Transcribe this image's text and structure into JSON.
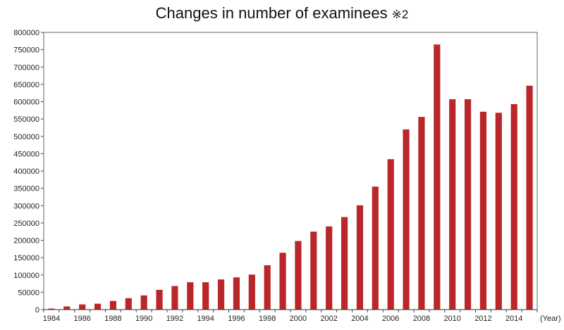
{
  "chart_data": {
    "type": "bar",
    "title": "Changes in number of examinees",
    "title_note": "※2",
    "xlabel": "",
    "ylabel": "",
    "x_unit_label": "(Year)",
    "ylim": [
      0,
      800000
    ],
    "y_ticks": [
      0,
      50000,
      100000,
      150000,
      200000,
      250000,
      300000,
      350000,
      400000,
      450000,
      500000,
      550000,
      600000,
      650000,
      700000,
      750000,
      800000
    ],
    "x_tick_labels": [
      "1984",
      "1986",
      "1988",
      "1990",
      "1992",
      "1994",
      "1996",
      "1998",
      "2000",
      "2002",
      "2004",
      "2006",
      "2008",
      "2010",
      "2012",
      "2014"
    ],
    "categories": [
      "1984",
      "1985",
      "1986",
      "1987",
      "1988",
      "1989",
      "1990",
      "1991",
      "1992",
      "1993",
      "1994",
      "1995",
      "1996",
      "1997",
      "1998",
      "1999",
      "2000",
      "2001",
      "2002",
      "2003",
      "2004",
      "2005",
      "2006",
      "2007",
      "2008",
      "2009",
      "2010",
      "2011",
      "2012",
      "2013",
      "2014",
      "2015"
    ],
    "values": [
      3000,
      9000,
      15000,
      17000,
      25000,
      33000,
      41000,
      57000,
      68000,
      79000,
      79000,
      87000,
      93000,
      101000,
      128000,
      164000,
      198000,
      225000,
      240000,
      267000,
      301000,
      355000,
      434000,
      520000,
      556000,
      765000,
      607000,
      607000,
      571000,
      568000,
      593000,
      646000
    ],
    "bar_color": "#b9272a",
    "grid": false,
    "legend": "none"
  }
}
